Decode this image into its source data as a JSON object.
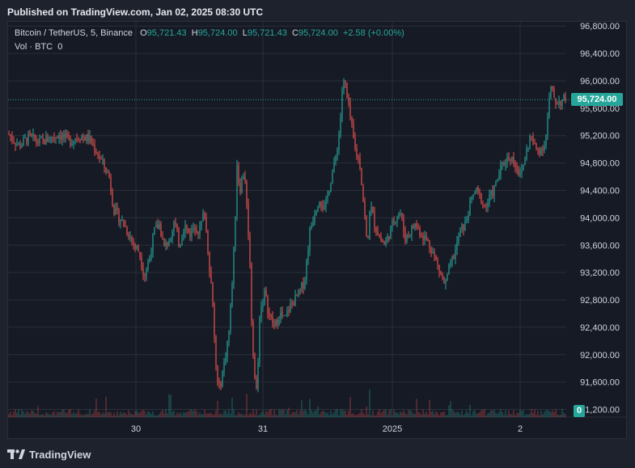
{
  "header": {
    "published": "Published on TradingView.com, Jan 02, 2025 08:30 UTC"
  },
  "legend": {
    "symbol": "Bitcoin / TetherUS, 5, Binance",
    "o_label": "O",
    "o_value": "95,721.43",
    "h_label": "H",
    "h_value": "95,724.00",
    "l_label": "L",
    "l_value": "95,721.43",
    "c_label": "C",
    "c_value": "95,724.00",
    "change": "+2.58 (+0.00%)",
    "vol_label": "Vol · BTC",
    "vol_value": "0"
  },
  "last_price_label": "95,724.00",
  "volume_label": "0",
  "footer": {
    "brand": "TradingView"
  },
  "colors": {
    "up": "#26a69a",
    "down": "#ef5350",
    "background": "#161a25",
    "grid": "#2a2e39"
  },
  "chart_data": {
    "type": "candlestick",
    "symbol": "Bitcoin / TetherUS",
    "interval": "5",
    "exchange": "Binance",
    "y_ticks": [
      "96,800.00",
      "96,400.00",
      "96,000.00",
      "95,600.00",
      "95,200.00",
      "94,800.00",
      "94,400.00",
      "94,000.00",
      "93,600.00",
      "93,200.00",
      "92,800.00",
      "92,400.00",
      "92,000.00",
      "91,600.00",
      "91,200.00"
    ],
    "y_tick_values": [
      96800,
      96400,
      96000,
      95600,
      95200,
      94800,
      94400,
      94000,
      93600,
      93200,
      92800,
      92400,
      92000,
      91600,
      91200
    ],
    "x_ticks": [
      "30",
      "31",
      "2025",
      "2"
    ],
    "ylim": [
      91100,
      96850
    ],
    "last_price": 95724.0,
    "series": [
      {
        "name": "",
        "points": [
          [
            0,
            95220
          ],
          [
            4,
            95050
          ],
          [
            8,
            95180
          ],
          [
            12,
            95100
          ],
          [
            16,
            95150
          ],
          [
            20,
            95220
          ],
          [
            24,
            95120
          ],
          [
            28,
            95200
          ],
          [
            32,
            95150
          ],
          [
            36,
            94900
          ],
          [
            40,
            94600
          ],
          [
            42,
            94100
          ],
          [
            44,
            94000
          ],
          [
            46,
            93900
          ],
          [
            48,
            93750
          ],
          [
            50,
            93600
          ],
          [
            52,
            93500
          ],
          [
            54,
            93150
          ],
          [
            56,
            93400
          ],
          [
            58,
            93800
          ],
          [
            60,
            93900
          ],
          [
            62,
            93550
          ],
          [
            64,
            93700
          ],
          [
            66,
            93950
          ],
          [
            68,
            93600
          ],
          [
            70,
            93900
          ],
          [
            72,
            93750
          ],
          [
            74,
            93900
          ],
          [
            76,
            93800
          ],
          [
            78,
            94100
          ],
          [
            80,
            93300
          ],
          [
            81,
            92900
          ],
          [
            82,
            92200
          ],
          [
            83,
            91600
          ],
          [
            84,
            91500
          ],
          [
            86,
            91900
          ],
          [
            88,
            92400
          ],
          [
            90,
            93700
          ],
          [
            91,
            94800
          ],
          [
            92,
            94400
          ],
          [
            94,
            94700
          ],
          [
            96,
            93500
          ],
          [
            97,
            92300
          ],
          [
            98,
            91700
          ],
          [
            99,
            91400
          ],
          [
            100,
            92600
          ],
          [
            102,
            92900
          ],
          [
            104,
            92550
          ],
          [
            106,
            92400
          ],
          [
            108,
            92600
          ],
          [
            110,
            92500
          ],
          [
            112,
            92700
          ],
          [
            114,
            92800
          ],
          [
            116,
            92900
          ],
          [
            118,
            93100
          ],
          [
            120,
            93800
          ],
          [
            122,
            94100
          ],
          [
            124,
            94300
          ],
          [
            126,
            94100
          ],
          [
            128,
            94500
          ],
          [
            130,
            94800
          ],
          [
            132,
            95300
          ],
          [
            133,
            95900
          ],
          [
            134,
            96000
          ],
          [
            135,
            95700
          ],
          [
            136,
            95500
          ],
          [
            138,
            95000
          ],
          [
            140,
            94800
          ],
          [
            142,
            94000
          ],
          [
            143,
            93500
          ],
          [
            144,
            94200
          ],
          [
            146,
            93900
          ],
          [
            148,
            93700
          ],
          [
            150,
            93600
          ],
          [
            152,
            93800
          ],
          [
            154,
            94000
          ],
          [
            156,
            94100
          ],
          [
            158,
            93700
          ],
          [
            160,
            93800
          ],
          [
            162,
            93900
          ],
          [
            164,
            93800
          ],
          [
            166,
            93700
          ],
          [
            168,
            93600
          ],
          [
            170,
            93400
          ],
          [
            172,
            93200
          ],
          [
            174,
            93000
          ],
          [
            176,
            93300
          ],
          [
            178,
            93500
          ],
          [
            180,
            93800
          ],
          [
            182,
            93900
          ],
          [
            184,
            94200
          ],
          [
            186,
            94400
          ],
          [
            188,
            94300
          ],
          [
            190,
            94150
          ],
          [
            192,
            94300
          ],
          [
            194,
            94450
          ],
          [
            196,
            94700
          ],
          [
            198,
            94850
          ],
          [
            200,
            94900
          ],
          [
            202,
            94800
          ],
          [
            204,
            94600
          ],
          [
            206,
            94900
          ],
          [
            208,
            95200
          ],
          [
            210,
            95000
          ],
          [
            212,
            95000
          ],
          [
            214,
            95100
          ],
          [
            216,
            95900
          ],
          [
            217,
            95800
          ],
          [
            218,
            95700
          ],
          [
            220,
            95700
          ],
          [
            222,
            95724
          ]
        ]
      }
    ]
  }
}
